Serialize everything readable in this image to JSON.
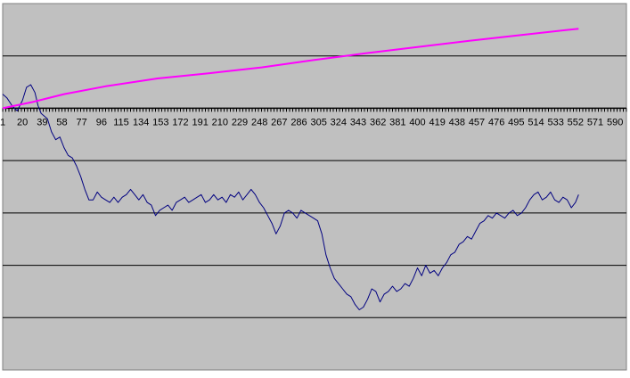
{
  "chart_data": {
    "type": "line",
    "title": "",
    "xlabel": "",
    "ylabel": "",
    "grid": true,
    "legend": "none",
    "colors": {
      "plot_background": "#c0c0c0",
      "gridline": "#000000",
      "axis": "#000000",
      "price_series": "#000080",
      "trend_series": "#ff00ff"
    },
    "x_ticks": [
      1,
      20,
      39,
      58,
      77,
      96,
      115,
      134,
      153,
      172,
      191,
      210,
      229,
      248,
      267,
      286,
      305,
      324,
      343,
      362,
      381,
      400,
      419,
      438,
      457,
      476,
      495,
      514,
      533,
      552,
      571,
      590
    ],
    "xlim": [
      1,
      601
    ],
    "ylim": [
      -5,
      2
    ],
    "y_gridlines": [
      -4,
      -3,
      -2,
      -1,
      1
    ],
    "series": [
      {
        "key": "price",
        "color": "#000080",
        "points": [
          [
            1,
            0.27
          ],
          [
            5,
            0.2
          ],
          [
            10,
            0.05
          ],
          [
            15,
            -0.05
          ],
          [
            20,
            0.15
          ],
          [
            24,
            0.4
          ],
          [
            28,
            0.45
          ],
          [
            32,
            0.3
          ],
          [
            35,
            0.05
          ],
          [
            38,
            -0.1
          ],
          [
            41,
            -0.15
          ],
          [
            44,
            -0.2
          ],
          [
            48,
            -0.45
          ],
          [
            52,
            -0.6
          ],
          [
            56,
            -0.55
          ],
          [
            60,
            -0.75
          ],
          [
            64,
            -0.9
          ],
          [
            68,
            -0.95
          ],
          [
            72,
            -1.1
          ],
          [
            76,
            -1.3
          ],
          [
            80,
            -1.55
          ],
          [
            84,
            -1.75
          ],
          [
            88,
            -1.75
          ],
          [
            92,
            -1.6
          ],
          [
            96,
            -1.7
          ],
          [
            100,
            -1.75
          ],
          [
            104,
            -1.8
          ],
          [
            108,
            -1.7
          ],
          [
            112,
            -1.8
          ],
          [
            116,
            -1.7
          ],
          [
            120,
            -1.65
          ],
          [
            124,
            -1.55
          ],
          [
            128,
            -1.65
          ],
          [
            132,
            -1.75
          ],
          [
            136,
            -1.65
          ],
          [
            140,
            -1.8
          ],
          [
            144,
            -1.85
          ],
          [
            148,
            -2.05
          ],
          [
            152,
            -1.95
          ],
          [
            156,
            -1.9
          ],
          [
            160,
            -1.85
          ],
          [
            164,
            -1.95
          ],
          [
            168,
            -1.8
          ],
          [
            172,
            -1.75
          ],
          [
            176,
            -1.7
          ],
          [
            180,
            -1.8
          ],
          [
            184,
            -1.75
          ],
          [
            188,
            -1.7
          ],
          [
            192,
            -1.65
          ],
          [
            196,
            -1.8
          ],
          [
            200,
            -1.75
          ],
          [
            204,
            -1.65
          ],
          [
            208,
            -1.75
          ],
          [
            212,
            -1.7
          ],
          [
            216,
            -1.8
          ],
          [
            220,
            -1.65
          ],
          [
            224,
            -1.7
          ],
          [
            228,
            -1.6
          ],
          [
            232,
            -1.75
          ],
          [
            236,
            -1.65
          ],
          [
            240,
            -1.55
          ],
          [
            244,
            -1.65
          ],
          [
            248,
            -1.8
          ],
          [
            252,
            -1.9
          ],
          [
            256,
            -2.05
          ],
          [
            260,
            -2.2
          ],
          [
            264,
            -2.4
          ],
          [
            268,
            -2.25
          ],
          [
            272,
            -2.0
          ],
          [
            276,
            -1.95
          ],
          [
            280,
            -2.0
          ],
          [
            284,
            -2.1
          ],
          [
            288,
            -1.95
          ],
          [
            292,
            -2.0
          ],
          [
            296,
            -2.05
          ],
          [
            300,
            -2.1
          ],
          [
            304,
            -2.15
          ],
          [
            308,
            -2.4
          ],
          [
            312,
            -2.8
          ],
          [
            316,
            -3.05
          ],
          [
            320,
            -3.25
          ],
          [
            324,
            -3.35
          ],
          [
            328,
            -3.45
          ],
          [
            332,
            -3.55
          ],
          [
            336,
            -3.6
          ],
          [
            340,
            -3.75
          ],
          [
            344,
            -3.85
          ],
          [
            348,
            -3.8
          ],
          [
            352,
            -3.65
          ],
          [
            356,
            -3.45
          ],
          [
            360,
            -3.5
          ],
          [
            364,
            -3.7
          ],
          [
            368,
            -3.55
          ],
          [
            372,
            -3.5
          ],
          [
            376,
            -3.4
          ],
          [
            380,
            -3.5
          ],
          [
            384,
            -3.45
          ],
          [
            388,
            -3.35
          ],
          [
            392,
            -3.4
          ],
          [
            396,
            -3.25
          ],
          [
            400,
            -3.05
          ],
          [
            404,
            -3.2
          ],
          [
            408,
            -3.0
          ],
          [
            412,
            -3.15
          ],
          [
            416,
            -3.1
          ],
          [
            420,
            -3.2
          ],
          [
            424,
            -3.05
          ],
          [
            428,
            -2.95
          ],
          [
            432,
            -2.8
          ],
          [
            436,
            -2.75
          ],
          [
            440,
            -2.6
          ],
          [
            444,
            -2.55
          ],
          [
            448,
            -2.45
          ],
          [
            452,
            -2.5
          ],
          [
            456,
            -2.35
          ],
          [
            460,
            -2.2
          ],
          [
            464,
            -2.15
          ],
          [
            468,
            -2.05
          ],
          [
            472,
            -2.1
          ],
          [
            476,
            -2.0
          ],
          [
            480,
            -2.05
          ],
          [
            484,
            -2.1
          ],
          [
            488,
            -2.0
          ],
          [
            492,
            -1.95
          ],
          [
            496,
            -2.05
          ],
          [
            500,
            -2.0
          ],
          [
            504,
            -1.9
          ],
          [
            508,
            -1.75
          ],
          [
            512,
            -1.65
          ],
          [
            516,
            -1.6
          ],
          [
            520,
            -1.75
          ],
          [
            524,
            -1.7
          ],
          [
            528,
            -1.6
          ],
          [
            532,
            -1.75
          ],
          [
            536,
            -1.8
          ],
          [
            540,
            -1.7
          ],
          [
            544,
            -1.75
          ],
          [
            548,
            -1.9
          ],
          [
            552,
            -1.8
          ],
          [
            555,
            -1.65
          ]
        ]
      },
      {
        "key": "trend",
        "color": "#ff00ff",
        "points": [
          [
            1,
            0.0
          ],
          [
            30,
            0.12
          ],
          [
            60,
            0.27
          ],
          [
            100,
            0.42
          ],
          [
            150,
            0.57
          ],
          [
            200,
            0.67
          ],
          [
            250,
            0.78
          ],
          [
            300,
            0.92
          ],
          [
            350,
            1.05
          ],
          [
            400,
            1.17
          ],
          [
            450,
            1.29
          ],
          [
            500,
            1.4
          ],
          [
            555,
            1.52
          ]
        ]
      }
    ]
  }
}
